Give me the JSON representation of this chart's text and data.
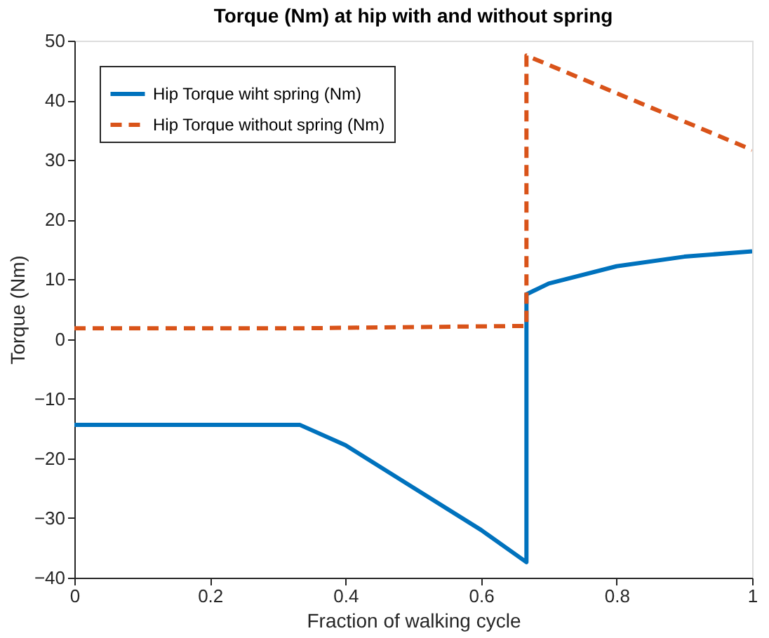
{
  "chart_data": {
    "type": "line",
    "title": "Torque (Nm) at hip with and without spring",
    "xlabel": "Fraction of walking cycle",
    "ylabel": "Torque (Nm)",
    "series": [
      {
        "name": "Hip Torque wiht spring (Nm)",
        "color": "#0072bd",
        "line_style": "solid",
        "x": [
          0,
          0.333,
          0.4,
          0.5,
          0.6,
          0.667,
          0.667,
          0.7,
          0.8,
          0.9,
          1
        ],
        "values": [
          -14.4,
          -14.4,
          -17.8,
          -24.9,
          -32.0,
          -37.4,
          7.5,
          9.3,
          12.2,
          13.8,
          14.7
        ]
      },
      {
        "name": "Hip Torque without spring (Nm)",
        "color": "#d95319",
        "line_style": "dashed",
        "x": [
          0,
          0.333,
          0.667,
          0.667,
          1
        ],
        "values": [
          1.8,
          1.8,
          2.2,
          47.5,
          31.7
        ]
      }
    ],
    "xlim": [
      0,
      1
    ],
    "xticks": [
      0,
      0.2,
      0.4,
      0.6,
      0.8,
      1
    ],
    "ylim": [
      -40,
      50
    ],
    "yticks": [
      -40,
      -30,
      -20,
      -10,
      0,
      10,
      20,
      30,
      40,
      50
    ],
    "grid": false,
    "legend": "top left",
    "marker": "none"
  }
}
